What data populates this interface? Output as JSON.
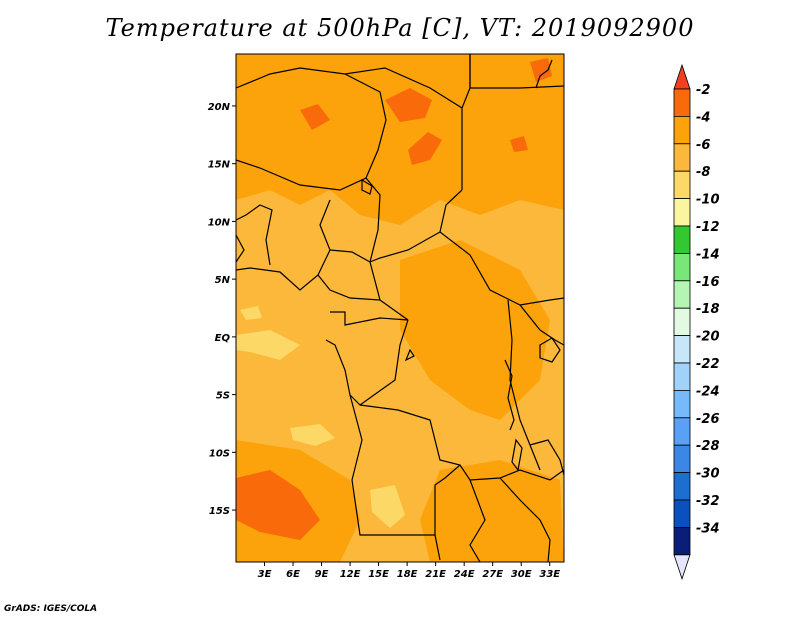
{
  "title": "Temperature at 500hPa [C], VT: 2019092900",
  "credit": "GrADS: IGES/COLA",
  "map": {
    "lon_range": [
      0,
      34.5
    ],
    "lat_range": [
      -19.5,
      24.5
    ],
    "lon_ticks": [
      {
        "value": 3,
        "label": "3E"
      },
      {
        "value": 6,
        "label": "6E"
      },
      {
        "value": 9,
        "label": "9E"
      },
      {
        "value": 12,
        "label": "12E"
      },
      {
        "value": 15,
        "label": "15E"
      },
      {
        "value": 18,
        "label": "18E"
      },
      {
        "value": 21,
        "label": "21E"
      },
      {
        "value": 24,
        "label": "24E"
      },
      {
        "value": 27,
        "label": "27E"
      },
      {
        "value": 30,
        "label": "30E"
      },
      {
        "value": 33,
        "label": "33E"
      }
    ],
    "lat_ticks": [
      {
        "value": 20,
        "label": "20N"
      },
      {
        "value": 15,
        "label": "15N"
      },
      {
        "value": 10,
        "label": "10N"
      },
      {
        "value": 5,
        "label": "5N"
      },
      {
        "value": 0,
        "label": "EQ"
      },
      {
        "value": -5,
        "label": "5S"
      },
      {
        "value": -10,
        "label": "10S"
      },
      {
        "value": -15,
        "label": "15S"
      }
    ],
    "colors": {
      "c_4_6": "#fca20a",
      "c_6_8": "#fcb83a",
      "c_8_10": "#fcd867",
      "c_2_4": "#f86a0a",
      "border": "#000000"
    }
  },
  "legend": {
    "labels": [
      "-2",
      "-4",
      "-6",
      "-8",
      "-10",
      "-12",
      "-14",
      "-16",
      "-18",
      "-20",
      "-22",
      "-24",
      "-26",
      "-28",
      "-30",
      "-32",
      "-34"
    ],
    "colors": [
      "#f86a0a",
      "#fca20a",
      "#fcb83a",
      "#fcd867",
      "#fcf5a0",
      "#32c832",
      "#78e678",
      "#b4f5b4",
      "#e1fae1",
      "#c8e6fa",
      "#a0d2fa",
      "#78b9fa",
      "#5aa0f5",
      "#3c87e6",
      "#1e6ed2",
      "#0a50be",
      "#0a1e78"
    ],
    "top_color": "#f04020",
    "bottom_color": "#e6e6fa"
  }
}
